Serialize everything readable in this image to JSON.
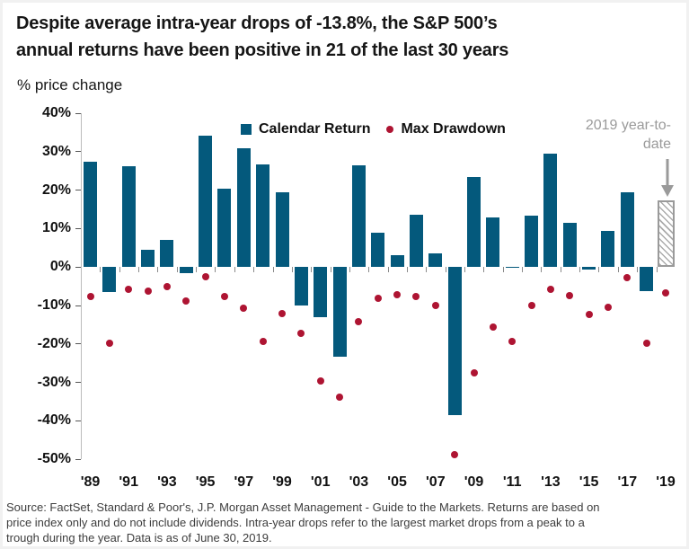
{
  "header": {
    "title_line1": "Despite average intra-year drops of -13.8%, the S&P 500’s",
    "title_line2": "annual returns have been positive in 21 of the last 30 years",
    "subtitle": "% price change"
  },
  "legend": {
    "calendar_return_label": "Calendar Return",
    "max_drawdown_label": "Max Drawdown"
  },
  "annotation": {
    "label": "2019 year-to-date"
  },
  "colors": {
    "bar": "#04597c",
    "dot": "#ae1432",
    "annotation_gray": "#9a9a9a",
    "axis_line": "#bcbcbc",
    "y_tick": "#555555",
    "x_boundary_tick": "#8a8a8a",
    "hatch_border": "#9a9a9a",
    "text": "#111111",
    "source_text": "#3d3d3d"
  },
  "chart_data": {
    "type": "bar",
    "title": "Despite average intra-year drops of -13.8%, the S&P 500’s annual returns have been positive in 21 of the last 30 years",
    "subtitle": "% price change",
    "categories": [
      "1989",
      "1990",
      "1991",
      "1992",
      "1993",
      "1994",
      "1995",
      "1996",
      "1997",
      "1998",
      "1999",
      "2000",
      "2001",
      "2002",
      "2003",
      "2004",
      "2005",
      "2006",
      "2007",
      "2008",
      "2009",
      "2010",
      "2011",
      "2012",
      "2013",
      "2014",
      "2015",
      "2016",
      "2017",
      "2018",
      "2019"
    ],
    "series": [
      {
        "name": "Calendar Return",
        "type": "bar",
        "values": [
          27.3,
          -6.6,
          26.3,
          4.5,
          7.1,
          -1.5,
          34.1,
          20.3,
          31.0,
          26.7,
          19.5,
          -10.1,
          -13.0,
          -23.4,
          26.4,
          9.0,
          3.0,
          13.6,
          3.5,
          -38.5,
          23.5,
          12.8,
          0.0,
          13.4,
          29.6,
          11.4,
          -0.7,
          9.5,
          19.4,
          -6.2,
          17.3
        ]
      },
      {
        "name": "Max Drawdown",
        "type": "scatter",
        "values": [
          -7.6,
          -19.9,
          -5.7,
          -6.2,
          -5.0,
          -8.9,
          -2.5,
          -7.6,
          -10.8,
          -19.3,
          -12.1,
          -17.2,
          -29.7,
          -33.8,
          -14.1,
          -8.2,
          -7.2,
          -7.7,
          -10.1,
          -48.8,
          -27.6,
          -15.6,
          -19.4,
          -9.9,
          -5.8,
          -7.4,
          -12.4,
          -10.5,
          -2.8,
          -19.8,
          -6.8
        ]
      }
    ],
    "last_bar_hatched": true,
    "last_bar_note": "2019 year-to-date",
    "ylim": [
      -50,
      40
    ],
    "ytick_step": 10,
    "ytick_labels": [
      "40%",
      "30%",
      "20%",
      "10%",
      "0%",
      "-10%",
      "-20%",
      "-30%",
      "-40%",
      "-50%"
    ],
    "xtick_labels": [
      "'89",
      "'91",
      "'93",
      "'95",
      "'97",
      "'99",
      "'01",
      "'03",
      "'05",
      "'07",
      "'09",
      "'11",
      "'13",
      "'15",
      "'17",
      "'19"
    ],
    "grid": false,
    "legend_position": "top-center"
  },
  "source": {
    "lines": [
      "Source: FactSet, Standard & Poor's, J.P. Morgan Asset Management - Guide to the Markets. Returns are based on",
      "price index only and do not include dividends. Intra-year drops refer to the largest market drops from a peak to a",
      "trough during the year. Data is as of June 30, 2019."
    ]
  }
}
